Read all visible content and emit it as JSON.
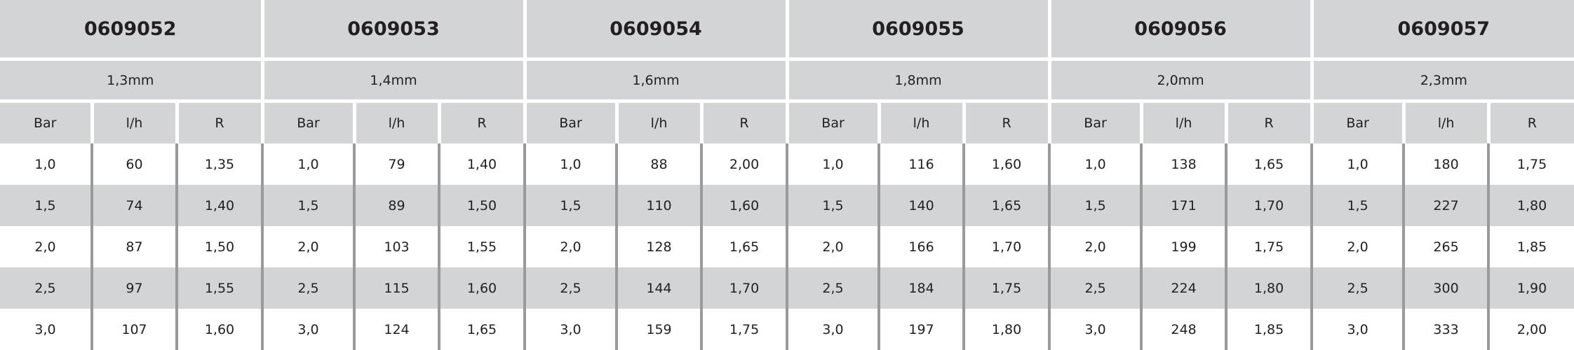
{
  "column_headers": [
    "Bar",
    "l/h",
    "R"
  ],
  "groups": [
    {
      "code": "0609052",
      "diameter": "1,3mm",
      "rows": [
        [
          "1,0",
          "60",
          "1,35"
        ],
        [
          "1,5",
          "74",
          "1,40"
        ],
        [
          "2,0",
          "87",
          "1,50"
        ],
        [
          "2,5",
          "97",
          "1,55"
        ],
        [
          "3,0",
          "107",
          "1,60"
        ]
      ]
    },
    {
      "code": "0609053",
      "diameter": "1,4mm",
      "rows": [
        [
          "1,0",
          "79",
          "1,40"
        ],
        [
          "1,5",
          "89",
          "1,50"
        ],
        [
          "2,0",
          "103",
          "1,55"
        ],
        [
          "2,5",
          "115",
          "1,60"
        ],
        [
          "3,0",
          "124",
          "1,65"
        ]
      ]
    },
    {
      "code": "0609054",
      "diameter": "1,6mm",
      "rows": [
        [
          "1,0",
          "88",
          "2,00"
        ],
        [
          "1,5",
          "110",
          "1,60"
        ],
        [
          "2,0",
          "128",
          "1,65"
        ],
        [
          "2,5",
          "144",
          "1,70"
        ],
        [
          "3,0",
          "159",
          "1,75"
        ]
      ]
    },
    {
      "code": "0609055",
      "diameter": "1,8mm",
      "rows": [
        [
          "1,0",
          "116",
          "1,60"
        ],
        [
          "1,5",
          "140",
          "1,65"
        ],
        [
          "2,0",
          "166",
          "1,70"
        ],
        [
          "2,5",
          "184",
          "1,75"
        ],
        [
          "3,0",
          "197",
          "1,80"
        ]
      ]
    },
    {
      "code": "0609056",
      "diameter": "2,0mm",
      "rows": [
        [
          "1,0",
          "138",
          "1,65"
        ],
        [
          "1,5",
          "171",
          "1,70"
        ],
        [
          "2,0",
          "199",
          "1,75"
        ],
        [
          "2,5",
          "224",
          "1,80"
        ],
        [
          "3,0",
          "248",
          "1,85"
        ]
      ]
    },
    {
      "code": "0609057",
      "diameter": "2,3mm",
      "rows": [
        [
          "1,0",
          "180",
          "1,75"
        ],
        [
          "1,5",
          "227",
          "1,80"
        ],
        [
          "2,0",
          "265",
          "1,85"
        ],
        [
          "2,5",
          "300",
          "1,90"
        ],
        [
          "3,0",
          "333",
          "2,00"
        ]
      ]
    }
  ],
  "colors": {
    "header_bg": "#d3d4d6",
    "separator": "#9a9a9a",
    "text": "#231f20"
  }
}
